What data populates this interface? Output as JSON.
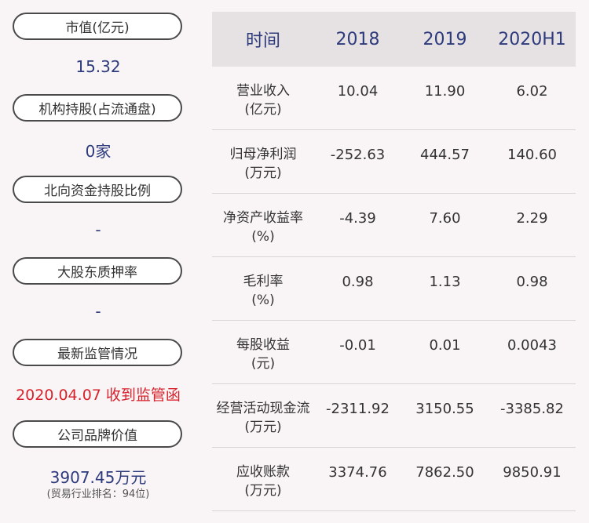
{
  "left": {
    "items": [
      {
        "label": "市值(亿元)",
        "value": "15.32"
      },
      {
        "label": "机构持股(占流通盘)",
        "value": "0家"
      },
      {
        "label": "北向资金持股比例",
        "value": "-"
      },
      {
        "label": "大股东质押率",
        "value": "-"
      },
      {
        "label": "最新监管情况",
        "value": "2020.04.07 收到监管函"
      },
      {
        "label": "公司品牌价值",
        "value": "3907.45万元",
        "note": "(贸易行业排名：94位)"
      }
    ]
  },
  "table": {
    "headers": [
      "时间",
      "2018",
      "2019",
      "2020H1"
    ],
    "rows": [
      {
        "name": "营业收入",
        "unit": "(亿元)",
        "values": [
          "10.04",
          "11.90",
          "6.02"
        ]
      },
      {
        "name": "归母净利润",
        "unit": "(万元)",
        "values": [
          "-252.63",
          "444.57",
          "140.60"
        ]
      },
      {
        "name": "净资产收益率",
        "unit": "(%)",
        "values": [
          "-4.39",
          "7.60",
          "2.29"
        ]
      },
      {
        "name": "毛利率",
        "unit": "(%)",
        "values": [
          "0.98",
          "1.13",
          "0.98"
        ]
      },
      {
        "name": "每股收益",
        "unit": "(元)",
        "values": [
          "-0.01",
          "0.01",
          "0.0043"
        ]
      },
      {
        "name": "经营活动现金流",
        "unit": "(万元)",
        "values": [
          "-2311.92",
          "3150.55",
          "-3385.82"
        ]
      },
      {
        "name": "应收账款",
        "unit": "(万元)",
        "values": [
          "3374.76",
          "7862.50",
          "9850.91"
        ]
      }
    ]
  }
}
